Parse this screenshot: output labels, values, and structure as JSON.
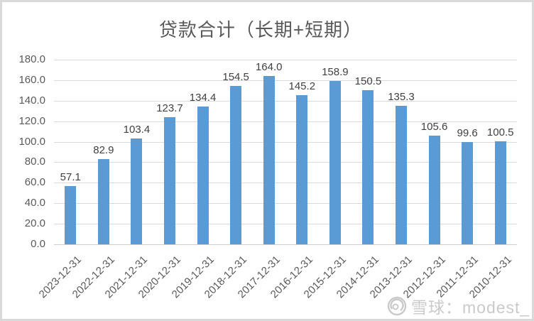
{
  "chart_data": {
    "type": "bar",
    "title": "贷款合计（长期+短期）",
    "categories": [
      "2023-12-31",
      "2022-12-31",
      "2021-12-31",
      "2020-12-31",
      "2019-12-31",
      "2018-12-31",
      "2017-12-31",
      "2016-12-31",
      "2015-12-31",
      "2014-12-31",
      "2013-12-31",
      "2012-12-31",
      "2011-12-31",
      "2010-12-31"
    ],
    "values": [
      57.1,
      82.9,
      103.4,
      123.7,
      134.4,
      154.5,
      164.0,
      145.2,
      158.9,
      150.5,
      135.3,
      105.6,
      99.6,
      100.5
    ],
    "xlabel": "",
    "ylabel": "",
    "ylim": [
      0,
      180
    ],
    "ytick_step": 20,
    "grid": true,
    "legend_position": "none",
    "bar_color": "#5B9BD5",
    "value_label_decimals": 1
  },
  "watermark": {
    "icon": "xueqiu-snowball-logo",
    "text": "雪球：modest_"
  },
  "colors": {
    "bar": "#5B9BD5",
    "gridline": "#dadada",
    "axis_text": "#595959",
    "value_label_text": "#404040",
    "title_text": "#595959",
    "border": "#d9d9d9",
    "watermark_text": "#c5c5c5"
  }
}
